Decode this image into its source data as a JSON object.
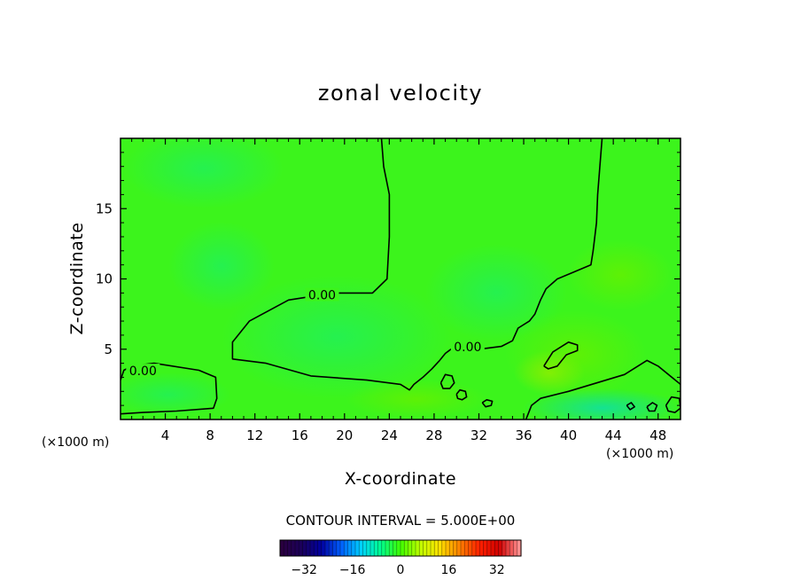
{
  "chart_data": {
    "type": "contour",
    "title": "zonal velocity",
    "xlabel": "X-coordinate",
    "ylabel": "Z-coordinate",
    "x_unit_left": "(×1000 m)",
    "x_unit_right": "(×1000 m)",
    "xlim": [
      0,
      50
    ],
    "ylim": [
      0,
      20
    ],
    "xticks": [
      4,
      8,
      12,
      16,
      20,
      24,
      28,
      32,
      36,
      40,
      44,
      48
    ],
    "yticks": [
      5,
      10,
      15
    ],
    "contour_interval_text": "CONTOUR INTERVAL = 5.000E+00",
    "contour_level_labels": [
      {
        "text": "0.00",
        "x": 18,
        "y": 8.8
      },
      {
        "text": "0.00",
        "x": 31,
        "y": 5.1
      },
      {
        "text": "0.00",
        "x": 2,
        "y": 3.4
      }
    ],
    "contours": [
      {
        "level": 0,
        "points": [
          [
            23.3,
            20
          ],
          [
            23.5,
            18
          ],
          [
            24,
            16
          ],
          [
            24,
            13
          ],
          [
            23.8,
            10
          ],
          [
            22.5,
            9
          ],
          [
            19,
            9
          ],
          [
            15,
            8.5
          ],
          [
            11.5,
            7
          ],
          [
            10,
            5.5
          ],
          [
            10,
            4.3
          ],
          [
            13,
            4
          ],
          [
            17,
            3.1
          ],
          [
            22,
            2.8
          ],
          [
            25,
            2.5
          ],
          [
            25.8,
            2.1
          ],
          [
            26.2,
            2.5
          ],
          [
            27,
            3
          ],
          [
            27.8,
            3.6
          ],
          [
            28.5,
            4.2
          ],
          [
            29,
            4.7
          ],
          [
            29.5,
            5
          ],
          [
            32,
            5
          ],
          [
            34,
            5.2
          ],
          [
            35,
            5.6
          ],
          [
            35.5,
            6.5
          ],
          [
            36.5,
            7
          ],
          [
            37,
            7.5
          ],
          [
            37.5,
            8.5
          ],
          [
            38,
            9.3
          ],
          [
            39,
            10
          ],
          [
            40.5,
            10.5
          ],
          [
            42,
            11
          ],
          [
            42.2,
            12
          ],
          [
            42.5,
            14
          ],
          [
            42.6,
            16
          ],
          [
            42.8,
            18
          ],
          [
            43,
            20
          ]
        ]
      },
      {
        "level": 0,
        "points": [
          [
            0,
            2.8
          ],
          [
            0.3,
            3.5
          ],
          [
            1,
            3.8
          ],
          [
            3,
            4
          ],
          [
            7,
            3.5
          ],
          [
            8.5,
            3
          ],
          [
            8.6,
            1.5
          ],
          [
            8.3,
            0.8
          ],
          [
            5,
            0.6
          ],
          [
            2,
            0.5
          ],
          [
            0,
            0.4
          ]
        ]
      },
      {
        "level": 0,
        "points": [
          [
            36.2,
            0
          ],
          [
            36.7,
            1
          ],
          [
            37.5,
            1.5
          ],
          [
            40,
            2
          ],
          [
            42.5,
            2.6
          ],
          [
            45,
            3.2
          ],
          [
            47,
            4.2
          ],
          [
            48,
            3.8
          ],
          [
            50,
            2.5
          ]
        ]
      },
      {
        "level": 0,
        "points": [
          [
            37.8,
            3.8
          ],
          [
            38.6,
            4.8
          ],
          [
            40,
            5.5
          ],
          [
            40.8,
            5.3
          ],
          [
            40.8,
            4.9
          ],
          [
            39.8,
            4.6
          ],
          [
            39,
            3.8
          ],
          [
            38.2,
            3.6
          ],
          [
            37.8,
            3.8
          ]
        ]
      },
      {
        "level": 0,
        "points": [
          [
            28.6,
            2.6
          ],
          [
            29,
            3.2
          ],
          [
            29.6,
            3.1
          ],
          [
            29.8,
            2.6
          ],
          [
            29.4,
            2.2
          ],
          [
            28.8,
            2.2
          ],
          [
            28.6,
            2.6
          ]
        ]
      },
      {
        "level": 0,
        "points": [
          [
            30,
            1.8
          ],
          [
            30.3,
            2.1
          ],
          [
            30.8,
            2
          ],
          [
            30.9,
            1.6
          ],
          [
            30.5,
            1.4
          ],
          [
            30.1,
            1.5
          ],
          [
            30,
            1.8
          ]
        ]
      },
      {
        "level": 0,
        "points": [
          [
            32.3,
            1.2
          ],
          [
            32.7,
            1.4
          ],
          [
            33.2,
            1.3
          ],
          [
            33.1,
            1
          ],
          [
            32.6,
            0.9
          ],
          [
            32.3,
            1.2
          ]
        ]
      },
      {
        "level": 0,
        "points": [
          [
            48.7,
            1
          ],
          [
            49.2,
            1.6
          ],
          [
            49.9,
            1.5
          ],
          [
            50,
            0.8
          ],
          [
            49.5,
            0.5
          ],
          [
            48.9,
            0.6
          ],
          [
            48.7,
            1
          ]
        ]
      },
      {
        "level": 0,
        "points": [
          [
            47,
            0.9
          ],
          [
            47.5,
            1.2
          ],
          [
            47.9,
            1
          ],
          [
            47.7,
            0.6
          ],
          [
            47.2,
            0.6
          ],
          [
            47,
            0.9
          ]
        ]
      },
      {
        "level": 0,
        "points": [
          [
            45.2,
            1
          ],
          [
            45.6,
            1.2
          ],
          [
            45.9,
            0.9
          ],
          [
            45.5,
            0.7
          ],
          [
            45.2,
            1
          ]
        ]
      }
    ],
    "colorbar": {
      "ticks": [
        "−32",
        "−16",
        "0",
        "16",
        "32"
      ],
      "tick_values": [
        -32,
        -16,
        0,
        16,
        32
      ],
      "range": [
        -40,
        40
      ],
      "colors": [
        "#2a0040",
        "#1a005a",
        "#0000a0",
        "#0060ff",
        "#00d0ff",
        "#00ff90",
        "#40ff00",
        "#c0ff00",
        "#ffe000",
        "#ff8000",
        "#ff2000",
        "#d00000",
        "#ff9090"
      ]
    }
  }
}
